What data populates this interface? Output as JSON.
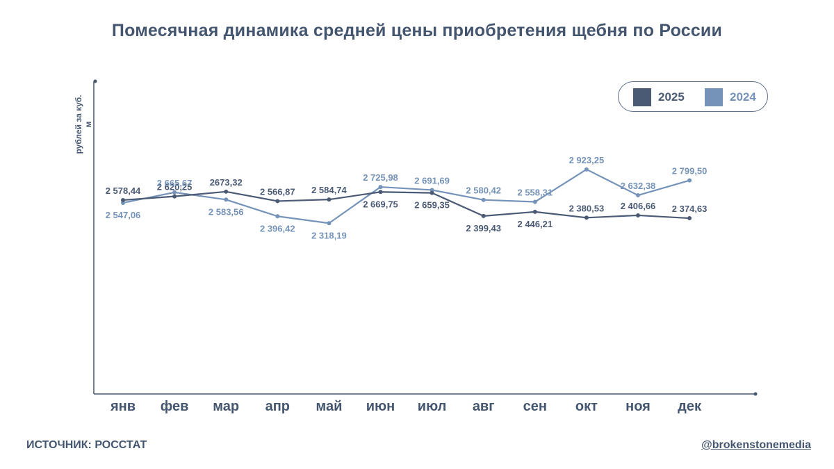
{
  "chart_data": {
    "type": "line",
    "title": "Помесячная динамика средней цены приобретения щебня по России",
    "ylabel": "рублей за куб. м",
    "xlabel": "",
    "categories": [
      "янв",
      "фев",
      "мар",
      "апр",
      "май",
      "июн",
      "июл",
      "авг",
      "сен",
      "окт",
      "ноя",
      "дек"
    ],
    "ylim": [
      0,
      2923.25
    ],
    "series": [
      {
        "name": "2025",
        "color": "#4a5a75",
        "values": [
          2578.44,
          2620.25,
          2673.32,
          2566.87,
          2584.74,
          2669.75,
          2659.35,
          2399.43,
          2446.21,
          2380.53,
          2406.66,
          2374.63
        ],
        "labels": [
          "2 578,44",
          "2 620,25",
          "2673,32",
          "2 566,87",
          "2 584,74",
          "2 669,75",
          "2 659,35",
          "2 399,43",
          "2 446,21",
          "2 380,53",
          "2 406,66",
          "2 374,63"
        ]
      },
      {
        "name": "2024",
        "color": "#7593b8",
        "values": [
          2547.06,
          2665.67,
          2583.56,
          2396.42,
          2318.19,
          2725.98,
          2691.69,
          2580.42,
          2558.31,
          2923.25,
          2632.38,
          2799.5
        ],
        "labels": [
          "2 547,06",
          "2 665,67",
          "2 583,56",
          "2 396,42",
          "2 318,19",
          "2 725,98",
          "2 691,69",
          "2 580,42",
          "2 558,31",
          "2 923,25",
          "2 632,38",
          "2 799,50"
        ]
      }
    ],
    "legend": "top-right"
  },
  "footer": {
    "source": "ИСТОЧНИК: РОССТАТ",
    "handle": "@brokenstonemedia"
  }
}
